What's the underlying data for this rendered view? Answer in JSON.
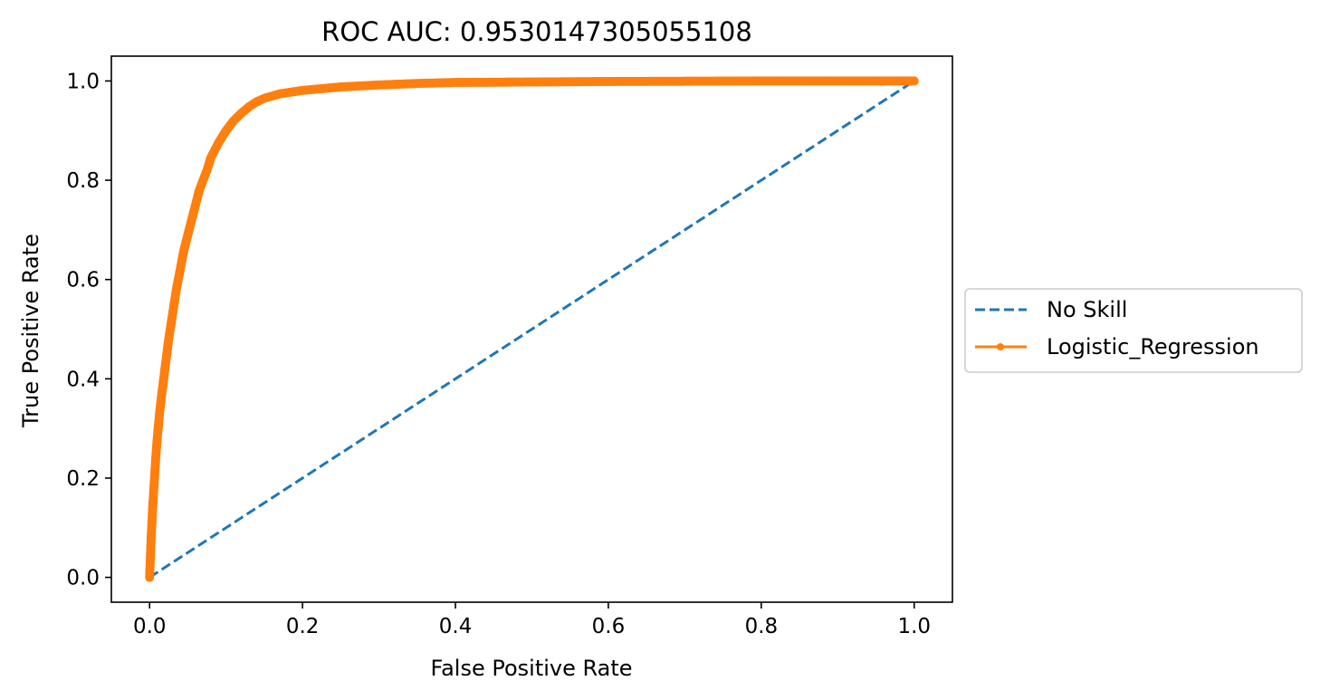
{
  "chart_data": {
    "type": "line",
    "title": "ROC AUC: 0.9530147305055108",
    "xlabel": "False Positive Rate",
    "ylabel": "True Positive Rate",
    "xlim": [
      -0.05,
      1.05
    ],
    "ylim": [
      -0.05,
      1.05
    ],
    "xticks": [
      0.0,
      0.2,
      0.4,
      0.6,
      0.8,
      1.0
    ],
    "xtick_labels": [
      "0.0",
      "0.2",
      "0.4",
      "0.6",
      "0.8",
      "1.0"
    ],
    "yticks": [
      0.0,
      0.2,
      0.4,
      0.6,
      0.8,
      1.0
    ],
    "ytick_labels": [
      "0.0",
      "0.2",
      "0.4",
      "0.6",
      "0.8",
      "1.0"
    ],
    "grid": false,
    "legend_position": "center-right outside",
    "series": [
      {
        "name": "No Skill",
        "style": "dashed",
        "color": "#1f77b4",
        "x": [
          0,
          1
        ],
        "y": [
          0,
          1
        ]
      },
      {
        "name": "Logistic_Regression",
        "style": "solid-with-dot-markers",
        "color": "#ff7f0e",
        "x": [
          0,
          0.001,
          0.002,
          0.004,
          0.006,
          0.008,
          0.01,
          0.013,
          0.016,
          0.02,
          0.025,
          0.03,
          0.035,
          0.04,
          0.045,
          0.05,
          0.055,
          0.06,
          0.065,
          0.07,
          0.075,
          0.08,
          0.09,
          0.1,
          0.11,
          0.12,
          0.13,
          0.14,
          0.15,
          0.17,
          0.2,
          0.25,
          0.3,
          0.35,
          0.4,
          0.5,
          0.6,
          0.7,
          0.8,
          0.9,
          1.0
        ],
        "y": [
          0,
          0.04,
          0.08,
          0.14,
          0.19,
          0.24,
          0.28,
          0.33,
          0.37,
          0.42,
          0.48,
          0.53,
          0.58,
          0.62,
          0.66,
          0.69,
          0.72,
          0.75,
          0.78,
          0.8,
          0.82,
          0.845,
          0.875,
          0.9,
          0.92,
          0.935,
          0.948,
          0.958,
          0.965,
          0.974,
          0.981,
          0.988,
          0.992,
          0.995,
          0.997,
          0.998,
          0.999,
          0.9995,
          1.0,
          1.0,
          1.0
        ]
      }
    ]
  }
}
